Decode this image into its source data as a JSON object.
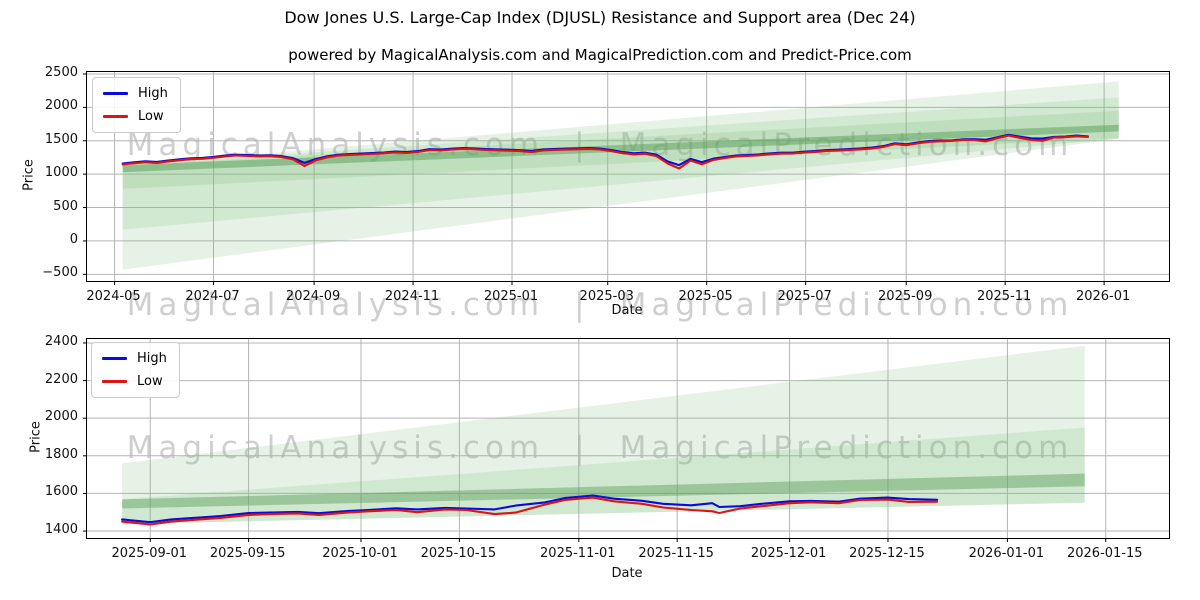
{
  "figure": {
    "title": "Dow Jones U.S. Large-Cap Index (DJUSL) Resistance and Support area (Dec 24)",
    "subtitle": "powered by MagicalAnalysis.com and MagicalPrediction.com and Predict-Price.com",
    "watermark": {
      "left": "MagicalAnalysis.com",
      "sep": "|",
      "right": "MagicalPrediction.com"
    },
    "background": "#ffffff",
    "grid_color": "#b4b4b4",
    "band_green": "#7cbc7c",
    "band_dark_green": "#589e58"
  },
  "chart_data": [
    {
      "type": "line",
      "title": "",
      "xlabel": "Date",
      "ylabel": "Price",
      "grid": true,
      "legend_position": "top-left",
      "x_domain": [
        "2024-04-14",
        "2026-02-10"
      ],
      "y_domain": [
        -600,
        2530
      ],
      "x_ticks": [
        {
          "date": "2024-05-01",
          "label": "2024-05"
        },
        {
          "date": "2024-07-01",
          "label": "2024-07"
        },
        {
          "date": "2024-09-01",
          "label": "2024-09"
        },
        {
          "date": "2024-11-01",
          "label": "2024-11"
        },
        {
          "date": "2025-01-01",
          "label": "2025-01"
        },
        {
          "date": "2025-03-01",
          "label": "2025-03"
        },
        {
          "date": "2025-05-01",
          "label": "2025-05"
        },
        {
          "date": "2025-07-01",
          "label": "2025-07"
        },
        {
          "date": "2025-09-01",
          "label": "2025-09"
        },
        {
          "date": "2025-11-01",
          "label": "2025-11"
        },
        {
          "date": "2026-01-01",
          "label": "2026-01"
        }
      ],
      "y_ticks": [
        {
          "value": 2500,
          "label": "2500"
        },
        {
          "value": 2000,
          "label": "2000"
        },
        {
          "value": 1500,
          "label": "1500"
        },
        {
          "value": 1000,
          "label": "1000"
        },
        {
          "value": 500,
          "label": "500"
        },
        {
          "value": 0,
          "label": "0"
        },
        {
          "value": -500,
          "label": "−500"
        }
      ],
      "bands": [
        {
          "name": "support-outer",
          "x": [
            "2024-05-06",
            "2026-01-10"
          ],
          "left": [
            -430,
            1130
          ],
          "right": [
            1530,
            2390
          ],
          "fill": "rgba(124,188,124,0.20)"
        },
        {
          "name": "support-mid",
          "x": [
            "2024-05-06",
            "2026-01-10"
          ],
          "left": [
            170,
            1130
          ],
          "right": [
            1535,
            2150
          ],
          "fill": "rgba(124,188,124,0.18)"
        },
        {
          "name": "support-inner",
          "x": [
            "2024-05-06",
            "2026-01-10"
          ],
          "left": [
            780,
            1130
          ],
          "right": [
            1540,
            1950
          ],
          "fill": "rgba(124,188,124,0.22)"
        },
        {
          "name": "support-stripe",
          "x": [
            "2024-05-06",
            "2026-01-10"
          ],
          "left": [
            1030,
            1135
          ],
          "right": [
            1640,
            1740
          ],
          "fill": "rgba(88,158,88,0.50)"
        }
      ],
      "dates": [
        "2024-05-06",
        "2024-05-13",
        "2024-05-20",
        "2024-05-27",
        "2024-06-03",
        "2024-06-10",
        "2024-06-17",
        "2024-06-24",
        "2024-07-01",
        "2024-07-08",
        "2024-07-15",
        "2024-07-22",
        "2024-07-29",
        "2024-08-05",
        "2024-08-12",
        "2024-08-19",
        "2024-08-26",
        "2024-09-02",
        "2024-09-09",
        "2024-09-16",
        "2024-09-23",
        "2024-09-30",
        "2024-10-07",
        "2024-10-14",
        "2024-10-21",
        "2024-10-28",
        "2024-11-04",
        "2024-11-11",
        "2024-11-18",
        "2024-11-25",
        "2024-12-02",
        "2024-12-09",
        "2024-12-16",
        "2024-12-23",
        "2024-12-30",
        "2025-01-06",
        "2025-01-13",
        "2025-01-20",
        "2025-01-27",
        "2025-02-03",
        "2025-02-10",
        "2025-02-17",
        "2025-02-24",
        "2025-03-03",
        "2025-03-10",
        "2025-03-17",
        "2025-03-24",
        "2025-03-31",
        "2025-04-07",
        "2025-04-14",
        "2025-04-21",
        "2025-04-28",
        "2025-05-05",
        "2025-05-12",
        "2025-05-19",
        "2025-05-26",
        "2025-06-02",
        "2025-06-09",
        "2025-06-16",
        "2025-06-23",
        "2025-06-30",
        "2025-07-07",
        "2025-07-14",
        "2025-07-21",
        "2025-07-28",
        "2025-08-04",
        "2025-08-11",
        "2025-08-18",
        "2025-08-25",
        "2025-09-01",
        "2025-09-08",
        "2025-09-15",
        "2025-09-22",
        "2025-09-29",
        "2025-10-06",
        "2025-10-13",
        "2025-10-20",
        "2025-10-27",
        "2025-11-03",
        "2025-11-10",
        "2025-11-17",
        "2025-11-24",
        "2025-12-01",
        "2025-12-08",
        "2025-12-15",
        "2025-12-22"
      ],
      "series": [
        {
          "name": "High",
          "color": "#0b0bdb",
          "values": [
            1160,
            1178,
            1192,
            1183,
            1205,
            1222,
            1238,
            1243,
            1258,
            1278,
            1291,
            1286,
            1280,
            1283,
            1270,
            1240,
            1168,
            1225,
            1268,
            1290,
            1300,
            1308,
            1315,
            1325,
            1338,
            1332,
            1346,
            1374,
            1368,
            1381,
            1391,
            1386,
            1376,
            1371,
            1366,
            1359,
            1346,
            1369,
            1376,
            1381,
            1386,
            1391,
            1384,
            1362,
            1332,
            1312,
            1322,
            1291,
            1190,
            1135,
            1228,
            1180,
            1231,
            1256,
            1279,
            1286,
            1296,
            1311,
            1321,
            1322,
            1336,
            1346,
            1361,
            1366,
            1376,
            1386,
            1398,
            1421,
            1462,
            1447,
            1472,
            1496,
            1502,
            1506,
            1521,
            1523,
            1515,
            1551,
            1589,
            1561,
            1537,
            1532,
            1558,
            1562,
            1578,
            1566
          ]
        },
        {
          "name": "Low",
          "color": "#de1414",
          "values": [
            1146,
            1163,
            1178,
            1168,
            1191,
            1208,
            1226,
            1230,
            1245,
            1264,
            1279,
            1272,
            1266,
            1269,
            1256,
            1222,
            1122,
            1206,
            1252,
            1278,
            1288,
            1295,
            1302,
            1312,
            1325,
            1318,
            1332,
            1360,
            1354,
            1368,
            1378,
            1372,
            1362,
            1357,
            1352,
            1345,
            1330,
            1355,
            1363,
            1368,
            1373,
            1378,
            1369,
            1345,
            1315,
            1294,
            1306,
            1270,
            1160,
            1085,
            1205,
            1148,
            1212,
            1240,
            1264,
            1272,
            1282,
            1297,
            1308,
            1309,
            1323,
            1333,
            1348,
            1353,
            1363,
            1373,
            1385,
            1408,
            1450,
            1434,
            1460,
            1485,
            1492,
            1496,
            1511,
            1512,
            1490,
            1539,
            1578,
            1545,
            1512,
            1500,
            1548,
            1553,
            1567,
            1556
          ]
        }
      ]
    },
    {
      "type": "line",
      "title": "",
      "xlabel": "Date",
      "ylabel": "Price",
      "grid": true,
      "legend_position": "top-left",
      "x_domain": [
        "2025-08-23",
        "2026-01-24"
      ],
      "y_domain": [
        1363,
        2421
      ],
      "x_ticks": [
        {
          "date": "2025-09-01",
          "label": "2025-09-01"
        },
        {
          "date": "2025-09-15",
          "label": "2025-09-15"
        },
        {
          "date": "2025-10-01",
          "label": "2025-10-01"
        },
        {
          "date": "2025-10-15",
          "label": "2025-10-15"
        },
        {
          "date": "2025-11-01",
          "label": "2025-11-01"
        },
        {
          "date": "2025-11-15",
          "label": "2025-11-15"
        },
        {
          "date": "2025-12-01",
          "label": "2025-12-01"
        },
        {
          "date": "2025-12-15",
          "label": "2025-12-15"
        },
        {
          "date": "2026-01-01",
          "label": "2026-01-01"
        },
        {
          "date": "2026-01-15",
          "label": "2026-01-15"
        }
      ],
      "y_ticks": [
        {
          "value": 2400,
          "label": "2400"
        },
        {
          "value": 2200,
          "label": "2200"
        },
        {
          "value": 2000,
          "label": "2000"
        },
        {
          "value": 1800,
          "label": "1800"
        },
        {
          "value": 1600,
          "label": "1600"
        },
        {
          "value": 1400,
          "label": "1400"
        }
      ],
      "bands": [
        {
          "name": "support-outer",
          "x": [
            "2025-08-28",
            "2026-01-12"
          ],
          "left": [
            1437,
            1760
          ],
          "right": [
            1550,
            2385
          ],
          "fill": "rgba(124,188,124,0.20)"
        },
        {
          "name": "support-mid",
          "x": [
            "2025-08-28",
            "2026-01-12"
          ],
          "left": [
            1437,
            1570
          ],
          "right": [
            1552,
            1950
          ],
          "fill": "rgba(124,188,124,0.20)"
        },
        {
          "name": "support-stripe",
          "x": [
            "2025-08-28",
            "2026-01-12"
          ],
          "left": [
            1520,
            1568
          ],
          "right": [
            1638,
            1705
          ],
          "fill": "rgba(88,158,88,0.45)"
        }
      ],
      "dates": [
        "2025-08-28",
        "2025-09-01",
        "2025-09-04",
        "2025-09-08",
        "2025-09-11",
        "2025-09-15",
        "2025-09-18",
        "2025-09-22",
        "2025-09-25",
        "2025-09-29",
        "2025-10-02",
        "2025-10-06",
        "2025-10-09",
        "2025-10-13",
        "2025-10-16",
        "2025-10-20",
        "2025-10-23",
        "2025-10-27",
        "2025-10-30",
        "2025-11-03",
        "2025-11-06",
        "2025-11-10",
        "2025-11-13",
        "2025-11-17",
        "2025-11-20",
        "2025-11-21",
        "2025-11-24",
        "2025-11-27",
        "2025-12-01",
        "2025-12-04",
        "2025-12-08",
        "2025-12-11",
        "2025-12-15",
        "2025-12-18",
        "2025-12-22"
      ],
      "series": [
        {
          "name": "High",
          "color": "#0b0bdb",
          "values": [
            1462,
            1447,
            1462,
            1472,
            1480,
            1496,
            1498,
            1502,
            1495,
            1506,
            1512,
            1521,
            1515,
            1523,
            1520,
            1515,
            1535,
            1551,
            1575,
            1589,
            1572,
            1561,
            1545,
            1537,
            1548,
            1528,
            1532,
            1545,
            1558,
            1560,
            1556,
            1572,
            1578,
            1570,
            1566
          ]
        },
        {
          "name": "Low",
          "color": "#de1414",
          "values": [
            1450,
            1435,
            1450,
            1462,
            1470,
            1486,
            1490,
            1494,
            1486,
            1498,
            1505,
            1512,
            1500,
            1515,
            1512,
            1490,
            1498,
            1539,
            1565,
            1578,
            1558,
            1545,
            1525,
            1512,
            1505,
            1496,
            1520,
            1532,
            1548,
            1553,
            1548,
            1565,
            1567,
            1555,
            1556
          ]
        }
      ]
    }
  ]
}
